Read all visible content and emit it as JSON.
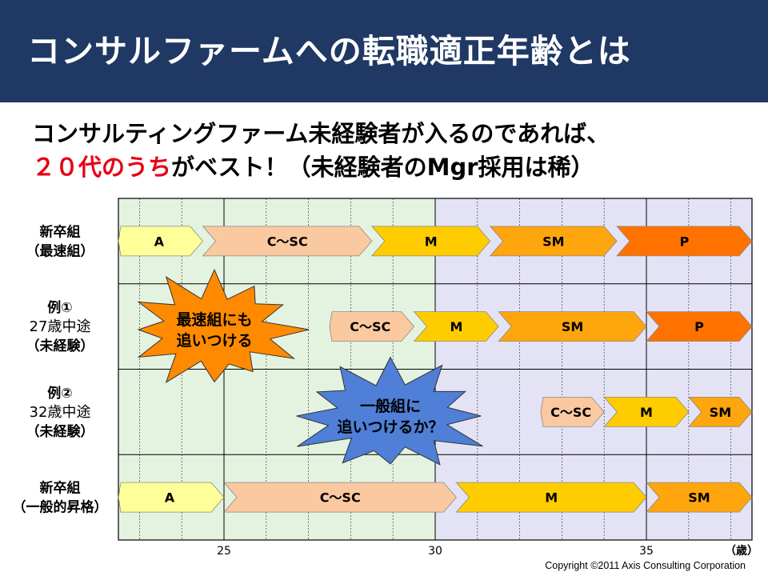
{
  "header": {
    "title": "コンサルファームへの転職適正年齢とは"
  },
  "subtitle": {
    "line1": "コンサルティングファーム未経験者が入るのであれば、",
    "line2_highlight": "２０代のうち",
    "line2_rest": "がベスト！（未経験者のMgr採用は稀）"
  },
  "chart_data": {
    "type": "timeline",
    "x_range": [
      22.5,
      37.5
    ],
    "x_ticks": [
      25,
      30,
      35
    ],
    "x_tick_labels": [
      "25",
      "30",
      "35"
    ],
    "x_unit": "（歳）",
    "zones": [
      {
        "from": 22.5,
        "to": 30,
        "color": "#e4f3e0"
      },
      {
        "from": 30,
        "to": 37.5,
        "color": "#e4e3f6"
      }
    ],
    "rows": [
      {
        "label": [
          "新卒組",
          "（最速組）"
        ],
        "bold": [
          true,
          true
        ],
        "bars": [
          {
            "label": "A",
            "from": 22.5,
            "to": 24.5,
            "color": "#ffff99"
          },
          {
            "label": "C～SC",
            "from": 24.5,
            "to": 28.5,
            "color": "#fbc9a0"
          },
          {
            "label": "M",
            "from": 28.5,
            "to": 31.3,
            "color": "#ffcc00"
          },
          {
            "label": "SM",
            "from": 31.3,
            "to": 34.3,
            "color": "#ffa50d"
          },
          {
            "label": "P",
            "from": 34.3,
            "to": 37.5,
            "color": "#ff7200"
          }
        ]
      },
      {
        "label": [
          "例①",
          "27歳中途",
          "（未経験）"
        ],
        "bold": [
          true,
          false,
          true
        ],
        "bars": [
          {
            "label": "C～SC",
            "from": 27.5,
            "to": 29.5,
            "color": "#fbc9a0"
          },
          {
            "label": "M",
            "from": 29.5,
            "to": 31.5,
            "color": "#ffcc00"
          },
          {
            "label": "SM",
            "from": 31.5,
            "to": 35.0,
            "color": "#ffa50d"
          },
          {
            "label": "P",
            "from": 35.0,
            "to": 37.5,
            "color": "#ff7200"
          }
        ]
      },
      {
        "label": [
          "例②",
          "32歳中途",
          "（未経験）"
        ],
        "bold": [
          true,
          false,
          true
        ],
        "bars": [
          {
            "label": "C～SC",
            "from": 32.5,
            "to": 34.0,
            "color": "#fbc9a0"
          },
          {
            "label": "M",
            "from": 34.0,
            "to": 36.0,
            "color": "#ffcc00"
          },
          {
            "label": "SM",
            "from": 36.0,
            "to": 37.5,
            "color": "#ffa50d"
          }
        ]
      },
      {
        "label": [
          "新卒組",
          "（一般的昇格）"
        ],
        "bold": [
          true,
          true
        ],
        "bars": [
          {
            "label": "A",
            "from": 22.5,
            "to": 25.0,
            "color": "#ffff99"
          },
          {
            "label": "C～SC",
            "from": 25.0,
            "to": 30.5,
            "color": "#fbc9a0"
          },
          {
            "label": "M",
            "from": 30.5,
            "to": 35.0,
            "color": "#ffcc00"
          },
          {
            "label": "SM",
            "from": 35.0,
            "to": 37.5,
            "color": "#ffa50d"
          }
        ]
      }
    ],
    "callouts": [
      {
        "name": "callout-catch-up-fastest",
        "lines": [
          "最速組にも",
          "追いつける"
        ],
        "fill": "#ff8a00",
        "row": 1
      },
      {
        "name": "callout-catch-up-general",
        "lines": [
          "一般組に",
          "追いつけるか？"
        ],
        "fill": "#4f7fd6",
        "row": 2
      }
    ]
  },
  "footer": {
    "copyright": "Copyright ©2011 Axis Consulting Corporation"
  }
}
